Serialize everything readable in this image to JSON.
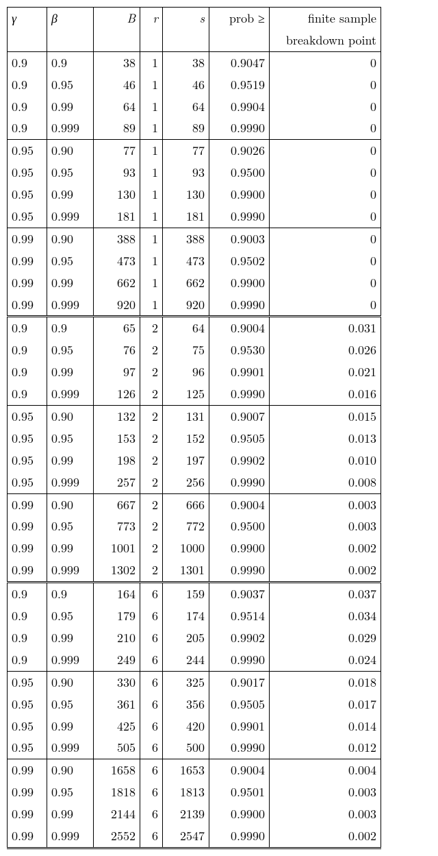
{
  "table": {
    "columns": [
      {
        "key": "gamma",
        "label_html": "γ",
        "class": "col-gamma",
        "align": "left",
        "header_italic": true
      },
      {
        "key": "beta",
        "label_html": "β",
        "class": "col-beta",
        "align": "left",
        "header_italic": true
      },
      {
        "key": "B",
        "label_html": "B",
        "class": "col-B",
        "align": "right",
        "header_italic": true
      },
      {
        "key": "r",
        "label_html": "r",
        "class": "col-r",
        "align": "right",
        "header_italic": true
      },
      {
        "key": "s",
        "label_html": "s",
        "class": "col-s",
        "align": "right",
        "header_italic": true
      },
      {
        "key": "prob",
        "label_html": "prob ≥",
        "class": "col-prob",
        "align": "right",
        "header_italic": false
      },
      {
        "key": "bp",
        "label_html": "finite sample",
        "label_html2": "breakdown point",
        "class": "col-bp",
        "align": "right",
        "header_italic": false
      }
    ],
    "groups": [
      {
        "double_top": false,
        "rows": [
          [
            "0.9",
            "0.9",
            "38",
            "1",
            "38",
            "0.9047",
            "0"
          ],
          [
            "0.9",
            "0.95",
            "46",
            "1",
            "46",
            "0.9519",
            "0"
          ],
          [
            "0.9",
            "0.99",
            "64",
            "1",
            "64",
            "0.9904",
            "0"
          ],
          [
            "0.9",
            "0.999",
            "89",
            "1",
            "89",
            "0.9990",
            "0"
          ]
        ]
      },
      {
        "double_top": false,
        "rows": [
          [
            "0.95",
            "0.90",
            "77",
            "1",
            "77",
            "0.9026",
            "0"
          ],
          [
            "0.95",
            "0.95",
            "93",
            "1",
            "93",
            "0.9500",
            "0"
          ],
          [
            "0.95",
            "0.99",
            "130",
            "1",
            "130",
            "0.9900",
            "0"
          ],
          [
            "0.95",
            "0.999",
            "181",
            "1",
            "181",
            "0.9990",
            "0"
          ]
        ]
      },
      {
        "double_top": false,
        "rows": [
          [
            "0.99",
            "0.90",
            "388",
            "1",
            "388",
            "0.9003",
            "0"
          ],
          [
            "0.99",
            "0.95",
            "473",
            "1",
            "473",
            "0.9502",
            "0"
          ],
          [
            "0.99",
            "0.99",
            "662",
            "1",
            "662",
            "0.9900",
            "0"
          ],
          [
            "0.99",
            "0.999",
            "920",
            "1",
            "920",
            "0.9990",
            "0"
          ]
        ]
      },
      {
        "double_top": true,
        "rows": [
          [
            "0.9",
            "0.9",
            "65",
            "2",
            "64",
            "0.9004",
            "0.031"
          ],
          [
            "0.9",
            "0.95",
            "76",
            "2",
            "75",
            "0.9530",
            "0.026"
          ],
          [
            "0.9",
            "0.99",
            "97",
            "2",
            "96",
            "0.9901",
            "0.021"
          ],
          [
            "0.9",
            "0.999",
            "126",
            "2",
            "125",
            "0.9990",
            "0.016"
          ]
        ]
      },
      {
        "double_top": false,
        "rows": [
          [
            "0.95",
            "0.90",
            "132",
            "2",
            "131",
            "0.9007",
            "0.015"
          ],
          [
            "0.95",
            "0.95",
            "153",
            "2",
            "152",
            "0.9505",
            "0.013"
          ],
          [
            "0.95",
            "0.99",
            "198",
            "2",
            "197",
            "0.9902",
            "0.010"
          ],
          [
            "0.95",
            "0.999",
            "257",
            "2",
            "256",
            "0.9990",
            "0.008"
          ]
        ]
      },
      {
        "double_top": false,
        "rows": [
          [
            "0.99",
            "0.90",
            "667",
            "2",
            "666",
            "0.9004",
            "0.003"
          ],
          [
            "0.99",
            "0.95",
            "773",
            "2",
            "772",
            "0.9500",
            "0.003"
          ],
          [
            "0.99",
            "0.99",
            "1001",
            "2",
            "1000",
            "0.9900",
            "0.002"
          ],
          [
            "0.99",
            "0.999",
            "1302",
            "2",
            "1301",
            "0.9990",
            "0.002"
          ]
        ]
      },
      {
        "double_top": true,
        "rows": [
          [
            "0.9",
            "0.9",
            "164",
            "6",
            "159",
            "0.9037",
            "0.037"
          ],
          [
            "0.9",
            "0.95",
            "179",
            "6",
            "174",
            "0.9514",
            "0.034"
          ],
          [
            "0.9",
            "0.99",
            "210",
            "6",
            "205",
            "0.9902",
            "0.029"
          ],
          [
            "0.9",
            "0.999",
            "249",
            "6",
            "244",
            "0.9990",
            "0.024"
          ]
        ]
      },
      {
        "double_top": false,
        "rows": [
          [
            "0.95",
            "0.90",
            "330",
            "6",
            "325",
            "0.9017",
            "0.018"
          ],
          [
            "0.95",
            "0.95",
            "361",
            "6",
            "356",
            "0.9505",
            "0.017"
          ],
          [
            "0.95",
            "0.99",
            "425",
            "6",
            "420",
            "0.9901",
            "0.014"
          ],
          [
            "0.95",
            "0.999",
            "505",
            "6",
            "500",
            "0.9990",
            "0.012"
          ]
        ]
      },
      {
        "double_top": false,
        "rows": [
          [
            "0.99",
            "0.90",
            "1658",
            "6",
            "1653",
            "0.9004",
            "0.004"
          ],
          [
            "0.99",
            "0.95",
            "1818",
            "6",
            "1813",
            "0.9501",
            "0.003"
          ],
          [
            "0.99",
            "0.99",
            "2144",
            "6",
            "2139",
            "0.9900",
            "0.003"
          ],
          [
            "0.99",
            "0.999",
            "2552",
            "6",
            "2547",
            "0.9990",
            "0.002"
          ]
        ]
      }
    ]
  }
}
